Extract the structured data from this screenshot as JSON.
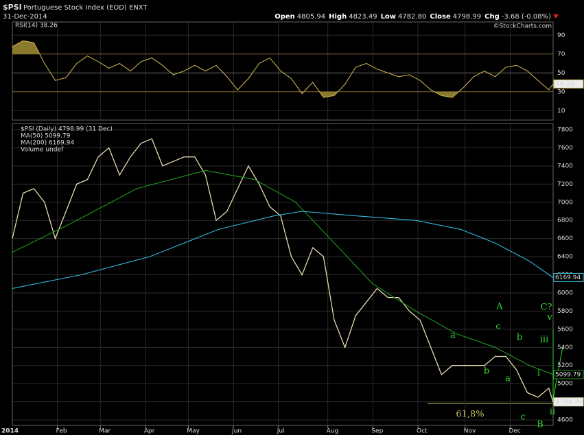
{
  "header": {
    "symbol": "$PSI",
    "name": "Portuguese Stock Index (EOD) ENXT",
    "date": "31-Dec-2014",
    "quote": [
      {
        "label": "Open",
        "value": "4805.94"
      },
      {
        "label": "High",
        "value": "4823.49"
      },
      {
        "label": "Low",
        "value": "4782.80"
      },
      {
        "label": "Close",
        "value": "4798.99"
      },
      {
        "label": "Chg",
        "value": "-3.68 (-0.08%)"
      }
    ],
    "credit": "©StockCharts.com"
  },
  "chart_data": [
    {
      "type": "line",
      "title": "RSI(14) 38.26",
      "ylim": [
        0,
        104
      ],
      "yticks": [
        10,
        30,
        50,
        70,
        90
      ],
      "xlim": [
        0,
        252
      ],
      "x": [
        0,
        5,
        10,
        15,
        20,
        25,
        30,
        35,
        40,
        45,
        50,
        55,
        60,
        65,
        70,
        75,
        80,
        85,
        90,
        95,
        100,
        105,
        110,
        115,
        120,
        125,
        130,
        135,
        140,
        145,
        150,
        155,
        160,
        165,
        170,
        175,
        180,
        185,
        190,
        195,
        200,
        205,
        210,
        215,
        220,
        225,
        230,
        235,
        240,
        245,
        250,
        252
      ],
      "series": [
        {
          "name": "RSI(14)",
          "color": "#c8ae50",
          "fill": "#8a7a2c",
          "tag": "38.26",
          "values": [
            78,
            84,
            82,
            60,
            42,
            45,
            60,
            68,
            62,
            55,
            60,
            52,
            62,
            66,
            58,
            48,
            52,
            58,
            52,
            58,
            46,
            32,
            44,
            60,
            66,
            52,
            44,
            28,
            40,
            24,
            26,
            38,
            56,
            60,
            54,
            50,
            46,
            48,
            42,
            32,
            26,
            24,
            34,
            46,
            52,
            46,
            56,
            58,
            52,
            42,
            32,
            38.26
          ]
        }
      ]
    },
    {
      "type": "line",
      "ylim": [
        4540,
        7868
      ],
      "yticks": [
        4600,
        4800,
        5000,
        5200,
        5400,
        5600,
        5800,
        6000,
        6200,
        6400,
        6600,
        6800,
        7000,
        7200,
        7400,
        7600,
        7800
      ],
      "xlim": [
        0,
        252
      ],
      "year_label": "2014",
      "xticks": [
        {
          "value": 21,
          "label": "Feb"
        },
        {
          "value": 41,
          "label": "Mar"
        },
        {
          "value": 62,
          "label": "Apr"
        },
        {
          "value": 82,
          "label": "May"
        },
        {
          "value": 103,
          "label": "Jun"
        },
        {
          "value": 124,
          "label": "Jul"
        },
        {
          "value": 147,
          "label": "Aug"
        },
        {
          "value": 168,
          "label": "Sep"
        },
        {
          "value": 189,
          "label": "Oct"
        },
        {
          "value": 211,
          "label": "Nov"
        },
        {
          "value": 232,
          "label": "Dec"
        }
      ],
      "x": [
        0,
        5,
        10,
        15,
        20,
        25,
        30,
        35,
        40,
        45,
        50,
        55,
        60,
        65,
        70,
        75,
        80,
        85,
        90,
        95,
        100,
        105,
        110,
        115,
        120,
        125,
        130,
        135,
        140,
        145,
        150,
        155,
        160,
        165,
        170,
        175,
        180,
        185,
        190,
        195,
        200,
        205,
        210,
        215,
        220,
        225,
        230,
        235,
        240,
        245,
        250,
        252
      ],
      "series": [
        {
          "name": "$PSI (Daily) 4798.99 (31 Dec)",
          "color": "#e8dcb0",
          "tag": "4798.99",
          "values": [
            6600,
            7100,
            7150,
            7000,
            6600,
            6900,
            7200,
            7250,
            7500,
            7600,
            7300,
            7500,
            7650,
            7700,
            7400,
            7450,
            7500,
            7500,
            7300,
            6800,
            6900,
            7150,
            7400,
            7200,
            6950,
            6850,
            6400,
            6200,
            6500,
            6400,
            5700,
            5400,
            5750,
            5900,
            6050,
            5950,
            5950,
            5800,
            5700,
            5400,
            5100,
            5200,
            5200,
            5200,
            5200,
            5300,
            5300,
            5150,
            4900,
            4850,
            4950,
            4798.99
          ]
        },
        {
          "name": "MA(50) 5099.79",
          "color": "#1f9a1f",
          "tag": "5099.79",
          "x": [
            0,
            26,
            58,
            90,
            113,
            132,
            148,
            168,
            188,
            207,
            225,
            241,
            252
          ],
          "values": [
            6450,
            6750,
            7150,
            7350,
            7250,
            7000,
            6600,
            6100,
            5800,
            5550,
            5400,
            5200,
            5100
          ]
        },
        {
          "name": "MA(200) 6169.94",
          "color": "#33bbdd",
          "tag": "6169.94",
          "x": [
            0,
            32,
            64,
            96,
            122,
            135,
            160,
            188,
            209,
            225,
            241,
            252
          ],
          "values": [
            6050,
            6200,
            6400,
            6700,
            6850,
            6900,
            6850,
            6800,
            6700,
            6550,
            6350,
            6170
          ]
        }
      ],
      "extra_legend": "Volume undef",
      "annotations": [
        "A",
        "c",
        "a",
        "b",
        "b",
        "a",
        "C?",
        "v",
        "iii",
        "i",
        "ii",
        "c",
        "B",
        "61,8%"
      ]
    }
  ]
}
